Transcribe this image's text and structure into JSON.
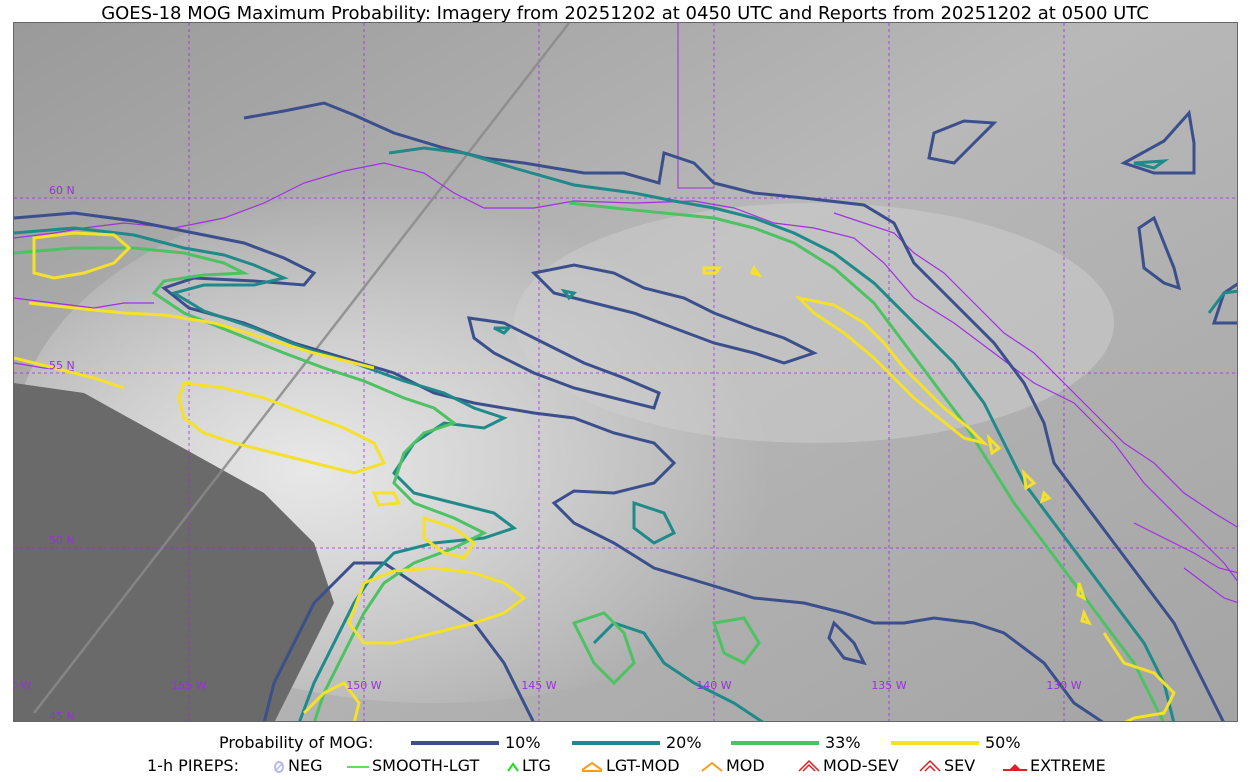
{
  "title": "GOES-18 MOG Maximum Probability: Imagery from 20251202 at 0450 UTC and Reports from 20251202 at 0500 UTC",
  "map": {
    "latitude_labels": [
      "60 N",
      "55 N",
      "50 N",
      "45 N"
    ],
    "longitude_labels": [
      "160 W",
      "155 W",
      "150 W",
      "145 W",
      "140 W",
      "135 W",
      "130 W"
    ],
    "graticule_color": "#9b30d9",
    "coastline_color": "#a030e0"
  },
  "legend": {
    "probability": {
      "title": "Probability of MOG:",
      "levels": [
        {
          "label": "10%",
          "color": "#3b4f8c"
        },
        {
          "label": "20%",
          "color": "#1f8a89"
        },
        {
          "label": "33%",
          "color": "#4cc262"
        },
        {
          "label": "50%",
          "color": "#f5e02a"
        }
      ]
    },
    "pireps": {
      "title": "1-h PIREPS:",
      "items": [
        {
          "label": "NEG",
          "icon": "neg-icon",
          "color": "#b8b8f0"
        },
        {
          "label": "SMOOTH-LGT",
          "icon": "smooth-lgt-icon",
          "color": "#33cc33"
        },
        {
          "label": "LTG",
          "icon": "ltg-icon",
          "color": "#22dd22"
        },
        {
          "label": "LGT-MOD",
          "icon": "lgt-mod-icon",
          "color": "#f0a020"
        },
        {
          "label": "MOD",
          "icon": "mod-icon",
          "color": "#f0a020"
        },
        {
          "label": "MOD-SEV",
          "icon": "mod-sev-icon",
          "color": "#e02020"
        },
        {
          "label": "SEV",
          "icon": "sev-icon",
          "color": "#e02020"
        },
        {
          "label": "EXTREME",
          "icon": "extreme-icon",
          "color": "#e02020"
        }
      ]
    }
  }
}
